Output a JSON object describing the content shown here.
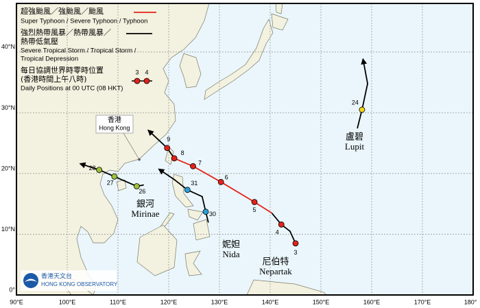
{
  "legend": {
    "typhoon_zh": "超強颱風／強颱風／颱風",
    "typhoon_en": "Super Typhoon / Severe Typhoon / Typhoon",
    "storm_zh_1": "強烈熱帶風暴／熱帶風暴／",
    "storm_zh_2": "熱帶低氣壓",
    "storm_en_1": "Severe Tropical Storm / Tropical Storm /",
    "storm_en_2": "Tropical Depression",
    "daily_zh_1": "每日協調世界時零時位置",
    "daily_zh_2": "(香港時間上午八時)",
    "daily_en": "Daily Positions at 00 UTC (08 HKT)",
    "sample_day_1": "3",
    "sample_day_2": "4"
  },
  "axes": {
    "xlim": [
      90,
      180
    ],
    "ylim": [
      0,
      48
    ],
    "xticks": [
      {
        "value": 90,
        "label": "90°E"
      },
      {
        "value": 100,
        "label": "100°E"
      },
      {
        "value": 110,
        "label": "110°E"
      },
      {
        "value": 120,
        "label": "120°E"
      },
      {
        "value": 130,
        "label": "130°E"
      },
      {
        "value": 140,
        "label": "140°E"
      },
      {
        "value": 150,
        "label": "150°E"
      },
      {
        "value": 160,
        "label": "160°E"
      },
      {
        "value": 170,
        "label": "170°E"
      },
      {
        "value": 180,
        "label": "180°"
      }
    ],
    "yticks": [
      {
        "value": 0,
        "label": "0°"
      },
      {
        "value": 10,
        "label": "10°N"
      },
      {
        "value": 20,
        "label": "20°N"
      },
      {
        "value": 30,
        "label": "30°N"
      },
      {
        "value": 40,
        "label": "40°N"
      }
    ]
  },
  "hong_kong": {
    "label_zh": "香港",
    "label_en": "Hong Kong",
    "lon": 114.2,
    "lat": 22.3
  },
  "storms": [
    {
      "name_zh": "尼伯特",
      "name_en": "Nepartak",
      "track": {
        "lon": [
          145.0,
          143.9,
          142.2,
          140.3,
          136.9,
          130.3,
          124.8,
          121.1,
          119.7,
          116.0
        ],
        "lat": [
          8.5,
          10.5,
          11.6,
          13.5,
          15.3,
          18.6,
          21.2,
          22.5,
          24.2,
          27.1
        ],
        "colors": [
          "#000000",
          "#000000",
          "#000000",
          "#e2231a",
          "#e2231a",
          "#e2231a",
          "#e2231a",
          "#000000",
          "#000000"
        ]
      },
      "positions": [
        {
          "day": "3",
          "lon": 145.0,
          "lat": 8.5,
          "color": "#e2231a"
        },
        {
          "day": "4",
          "lon": 142.2,
          "lat": 11.6,
          "color": "#e2231a"
        },
        {
          "day": "5",
          "lon": 136.9,
          "lat": 15.3,
          "color": "#e2231a"
        },
        {
          "day": "6",
          "lon": 130.3,
          "lat": 18.6,
          "color": "#e2231a"
        },
        {
          "day": "7",
          "lon": 124.8,
          "lat": 21.2,
          "color": "#e2231a"
        },
        {
          "day": "8",
          "lon": 121.1,
          "lat": 22.5,
          "color": "#e2231a"
        },
        {
          "day": "9",
          "lon": 119.7,
          "lat": 24.2,
          "color": "#e2231a"
        }
      ]
    },
    {
      "name_zh": "妮妲",
      "name_en": "Nida",
      "track": {
        "lon": [
          127.8,
          127.3,
          126.6,
          123.7,
          121.1,
          118.1
        ],
        "lat": [
          12.0,
          13.7,
          16.2,
          17.3,
          19.0,
          20.7
        ],
        "colors": [
          "#000000",
          "#000000",
          "#000000",
          "#000000",
          "#000000"
        ]
      },
      "positions": [
        {
          "day": "30",
          "lon": 127.3,
          "lat": 13.7,
          "color": "#2a9fd8"
        },
        {
          "day": "31",
          "lon": 123.7,
          "lat": 17.3,
          "color": "#2a9fd8"
        }
      ]
    },
    {
      "name_zh": "銀河",
      "name_en": "Mirinae",
      "track": {
        "lon": [
          115.0,
          113.7,
          109.3,
          106.3,
          102.6
        ],
        "lat": [
          18.1,
          17.9,
          19.5,
          20.6,
          21.6
        ],
        "colors": [
          "#000000",
          "#000000",
          "#000000",
          "#000000"
        ]
      },
      "positions": [
        {
          "day": "26",
          "lon": 113.7,
          "lat": 17.9,
          "color": "#9cc23a"
        },
        {
          "day": "27",
          "lon": 109.3,
          "lat": 19.5,
          "color": "#9cc23a"
        },
        {
          "day": "28",
          "lon": 106.3,
          "lat": 20.6,
          "color": "#9cc23a"
        }
      ]
    },
    {
      "name_zh": "盧碧",
      "name_en": "Lupit",
      "track": {
        "lon": [
          157.2,
          158.1,
          159.2,
          158.3
        ],
        "lat": [
          27.5,
          30.5,
          34.8,
          38.8
        ],
        "colors": [
          "#000000",
          "#000000",
          "#000000"
        ]
      },
      "positions": [
        {
          "day": "24",
          "lon": 158.1,
          "lat": 30.5,
          "color": "#f2d51c"
        }
      ]
    }
  ],
  "logo": {
    "zh": "香港天文台",
    "en": "Hong Kong Observatory"
  }
}
